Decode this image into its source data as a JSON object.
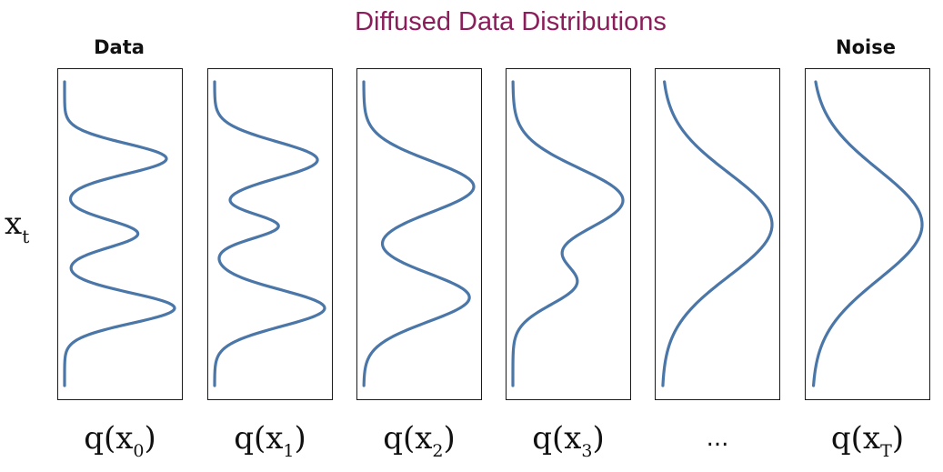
{
  "title": "Diffused Data Distributions",
  "column_headers": {
    "data": "Data",
    "noise": "Noise"
  },
  "axis_label": {
    "base": "x",
    "sub": "t"
  },
  "panels": [
    {
      "id": "x0",
      "label_prefix": "q(x",
      "label_sub": "0",
      "label_suffix": ")",
      "modes": [
        {
          "pos": 0.253,
          "width": 0.05,
          "height": 1.0
        },
        {
          "pos": 0.5,
          "width": 0.045,
          "height": 0.72
        },
        {
          "pos": 0.745,
          "width": 0.05,
          "height": 1.08
        }
      ]
    },
    {
      "id": "x1",
      "label_prefix": "q(x",
      "label_sub": "1",
      "label_suffix": ")",
      "modes": [
        {
          "pos": 0.257,
          "width": 0.06,
          "height": 1.0
        },
        {
          "pos": 0.475,
          "width": 0.04,
          "height": 0.62
        },
        {
          "pos": 0.745,
          "width": 0.06,
          "height": 1.07
        }
      ]
    },
    {
      "id": "x2",
      "label_prefix": "q(x",
      "label_sub": "2",
      "label_suffix": ")",
      "modes": [
        {
          "pos": 0.345,
          "width": 0.085,
          "height": 1.0
        },
        {
          "pos": 0.71,
          "width": 0.08,
          "height": 0.96
        }
      ]
    },
    {
      "id": "x3",
      "label_prefix": "q(x",
      "label_sub": "3",
      "label_suffix": ")",
      "modes": [
        {
          "pos": 0.39,
          "width": 0.105,
          "height": 1.0
        },
        {
          "pos": 0.665,
          "width": 0.07,
          "height": 0.55
        }
      ]
    },
    {
      "id": "xdots",
      "label_text": "...",
      "modes": [
        {
          "pos": 0.47,
          "width": 0.17,
          "height": 1.0
        }
      ]
    },
    {
      "id": "xT",
      "label_prefix": "q(x",
      "label_sub": "T",
      "label_suffix": ")",
      "modes": [
        {
          "pos": 0.47,
          "width": 0.18,
          "height": 1.0
        }
      ]
    }
  ],
  "colors": {
    "title": "#8a1e5a",
    "curve": "#4a76a8",
    "frame": "#1a1a1a"
  }
}
